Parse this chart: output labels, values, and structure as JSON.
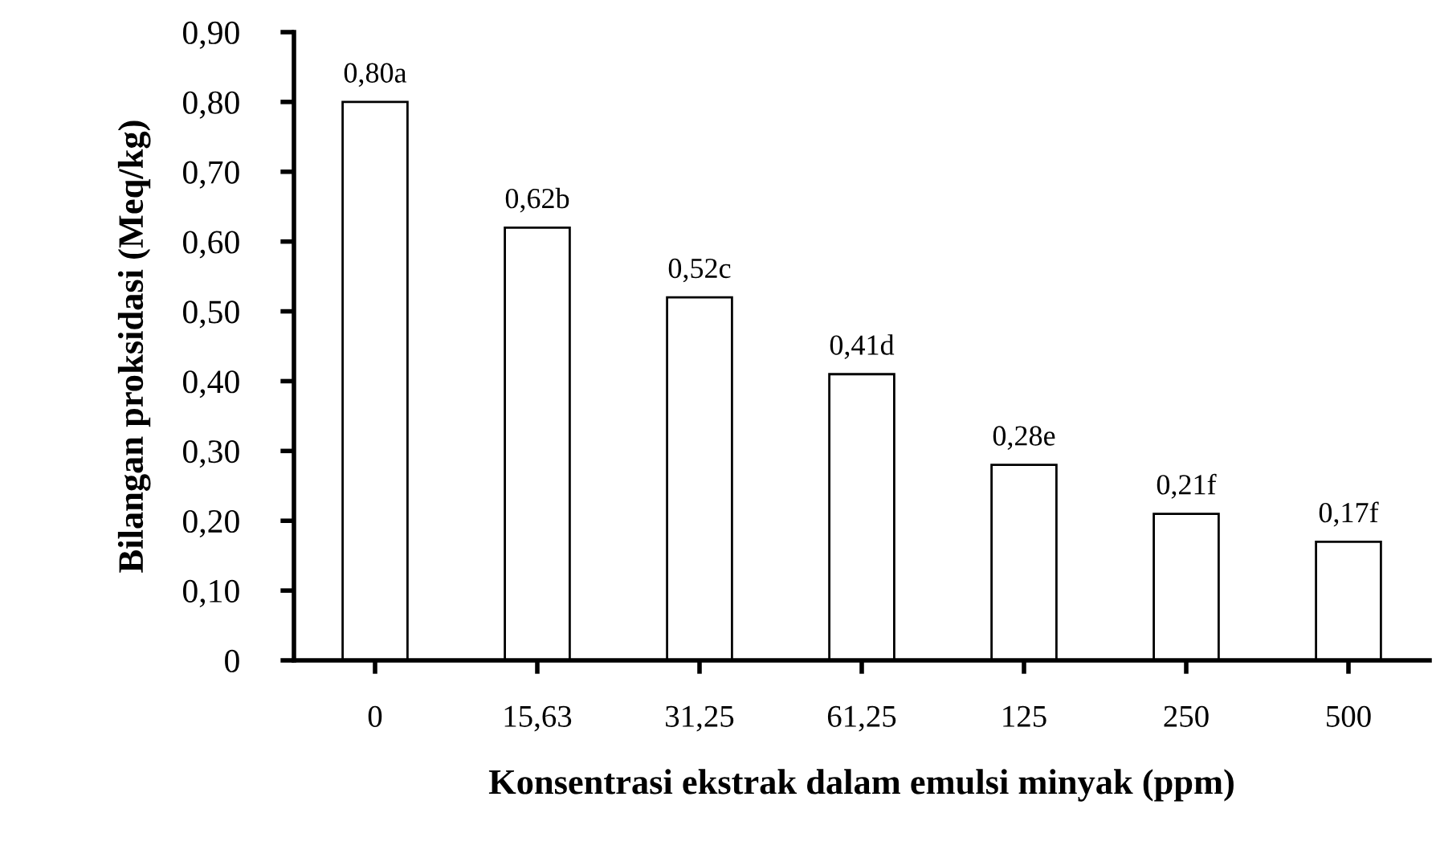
{
  "chart_data": {
    "type": "bar",
    "xlabel": "Konsentrasi ekstrak dalam emulsi minyak (ppm)",
    "ylabel": "Bilangan proksidasi (Meq/kg)",
    "categories": [
      "0",
      "15,63",
      "31,25",
      "61,25",
      "125",
      "250",
      "500"
    ],
    "values": [
      0.8,
      0.62,
      0.52,
      0.41,
      0.28,
      0.21,
      0.17
    ],
    "value_labels": [
      "0,80a",
      "0,62b",
      "0,52c",
      "0,41d",
      "0,28e",
      "0,21f",
      "0,17f"
    ],
    "color": "#ffffff",
    "ylim": [
      0,
      0.9
    ],
    "yticks": [
      {
        "value": 0,
        "label": "0"
      },
      {
        "value": 0.1,
        "label": "0,10"
      },
      {
        "value": 0.2,
        "label": "0,20"
      },
      {
        "value": 0.3,
        "label": "0,30"
      },
      {
        "value": 0.4,
        "label": "0,40"
      },
      {
        "value": 0.5,
        "label": "0,50"
      },
      {
        "value": 0.6,
        "label": "0,60"
      },
      {
        "value": 0.7,
        "label": "0,70"
      },
      {
        "value": 0.8,
        "label": "0,80"
      },
      {
        "value": 0.9,
        "label": "0,90"
      }
    ],
    "grid": false,
    "legend": false
  }
}
